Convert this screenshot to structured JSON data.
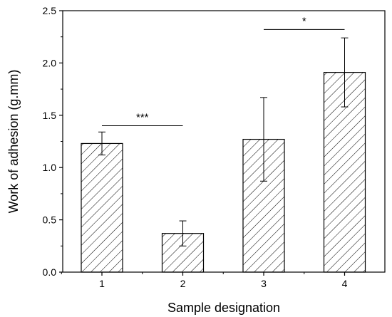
{
  "chart_data": {
    "type": "bar",
    "categories": [
      "1",
      "2",
      "3",
      "4"
    ],
    "values": [
      1.23,
      0.37,
      1.27,
      1.91
    ],
    "errors": [
      0.11,
      0.12,
      0.4,
      0.33
    ],
    "xlabel": "Sample designation",
    "ylabel": "Work of adhesion (g.mm)",
    "ylim": [
      0,
      2.5
    ],
    "yticks": [
      "0.0",
      "0.5",
      "1.0",
      "1.5",
      "2.0",
      "2.5"
    ],
    "grid": false,
    "bar_fill": "hatched",
    "significance": [
      {
        "from": "1",
        "to": "2",
        "label": "***",
        "y": 1.4
      },
      {
        "from": "3",
        "to": "4",
        "label": "*",
        "y": 2.32
      }
    ]
  }
}
